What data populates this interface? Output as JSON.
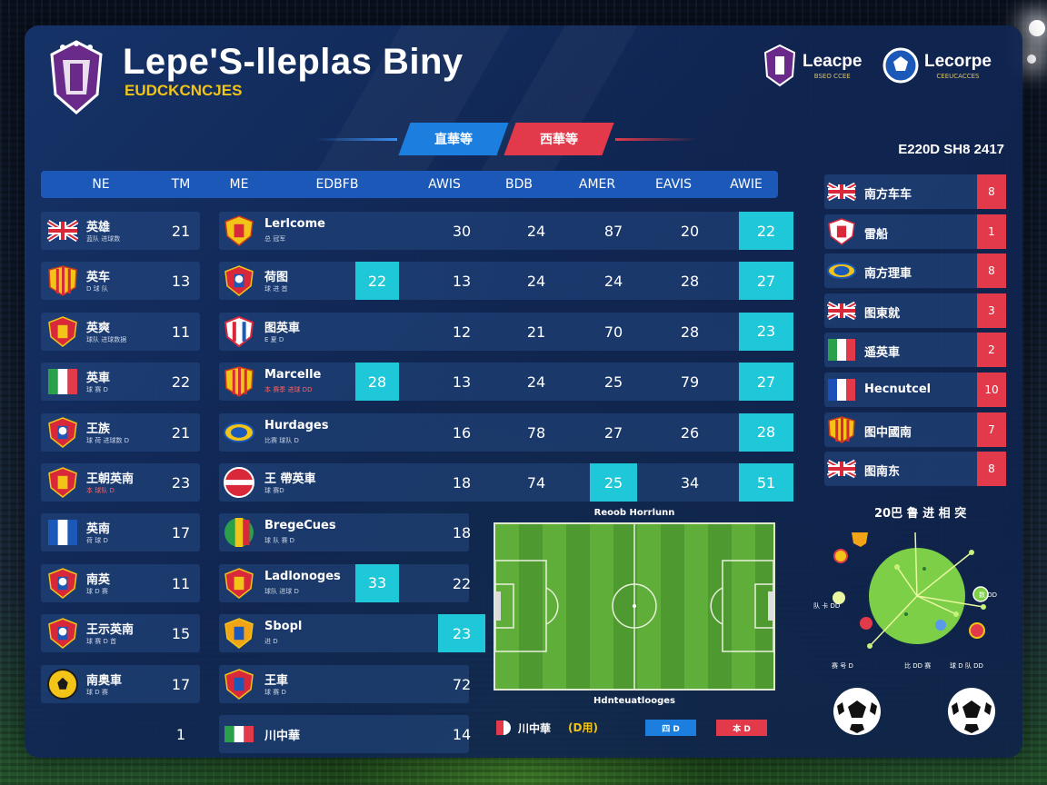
{
  "header": {
    "title": "Lepe'S-lleplas Biny",
    "subtitle": "EUDCKCNCJES",
    "brands": [
      {
        "name": "Leacpe",
        "sub": "BSEO CCEE"
      },
      {
        "name": "Lecorpe",
        "sub": "CEEUCACCES"
      }
    ],
    "season": "E220D SH8 2417"
  },
  "tabs": [
    {
      "label": "直華等",
      "color": "#1c7fe0"
    },
    {
      "label": "西華等",
      "color": "#e23a4a"
    }
  ],
  "table": {
    "headers": [
      "NE",
      "TM",
      "ME",
      "EDBFB",
      "AWIS",
      "BDB",
      "AMER",
      "EAVIS",
      "AWIE"
    ],
    "rows": [
      {
        "flag": "uk-flag-icon",
        "name": "英雄",
        "sub": "蓝队 进球数",
        "sub_red": false,
        "rank": "21",
        "club_crest": "yellow-red-crest-icon",
        "club": "Lerlcome",
        "club_sub": "总 冠军",
        "club_sub_red": false,
        "mid": "",
        "c1": "30",
        "c2": "24",
        "c3": "87",
        "c4": "20",
        "c5": "22"
      },
      {
        "flag": "yellow-red-stripes-flag-icon",
        "name": "英车",
        "sub": "D 球 队",
        "sub_red": false,
        "rank": "13",
        "club_crest": "blue-red-crest-icon",
        "club": "荷图",
        "club_sub": "球 进 首",
        "club_sub_red": false,
        "mid": "22",
        "c1": "13",
        "c2": "24",
        "c3": "24",
        "c4": "28",
        "c5": "27"
      },
      {
        "flag": "red-yellow-crest-icon",
        "name": "英爽",
        "sub": "球队 进球数据",
        "sub_red": false,
        "rank": "11",
        "club_crest": "red-white-crest-icon",
        "club": "图英車",
        "club_sub": "E 夏 D",
        "club_sub_red": false,
        "mid": "",
        "c1": "12",
        "c2": "21",
        "c3": "70",
        "c4": "28",
        "c5": "23"
      },
      {
        "flag": "italy-flag-icon",
        "name": "英車",
        "sub": "球 赛 D",
        "sub_red": false,
        "rank": "22",
        "club_crest": "orange-stripes-crest-icon",
        "club": "Marcelle",
        "club_sub": "本 赛季 进球 DD",
        "club_sub_red": true,
        "mid": "28",
        "c1": "13",
        "c2": "24",
        "c3": "25",
        "c4": "79",
        "c5": "27"
      },
      {
        "flag": "blue-red-crest-icon",
        "name": "王族",
        "sub": "球 荷 进球数 D",
        "sub_red": false,
        "rank": "21",
        "club_crest": "yellow-blue-crest-icon",
        "club": "Hurdages",
        "club_sub": "比赛 球队 D",
        "club_sub_red": false,
        "mid": "",
        "c1": "16",
        "c2": "78",
        "c3": "27",
        "c4": "26",
        "c5": "28"
      },
      {
        "flag": "red-yellow-crest-icon",
        "name": "王朝英南",
        "sub": "本 球队 D",
        "sub_red": true,
        "rank": "23",
        "club_crest": "red-white-stripes-crest-icon",
        "club": "王 帶英車",
        "club_sub": "球 赛D",
        "club_sub_red": false,
        "mid": "",
        "c1": "18",
        "c2": "74",
        "c3": "25",
        "c4": "34",
        "c5": "51"
      },
      {
        "flag": "blue-white-flag-icon",
        "name": "英南",
        "sub": "荷 球 D",
        "sub_red": false,
        "rank": "17",
        "club_crest": "green-yellow-red-crest-icon",
        "club": "BregeCues",
        "club_sub": "球 队 赛 D",
        "club_sub_red": false,
        "mid": "",
        "c1": "18",
        "c2": "",
        "c3": "",
        "c4": "",
        "c5": ""
      },
      {
        "flag": "blue-red-crest-icon",
        "name": "南英",
        "sub": "球 D 赛",
        "sub_red": false,
        "rank": "11",
        "club_crest": "red-yellow-crest-icon",
        "club": "Ladlonoges",
        "club_sub": "球队 进球 D",
        "club_sub_red": false,
        "mid": "33",
        "c1": "22",
        "c2": "",
        "c3": "",
        "c4": "",
        "c5": ""
      },
      {
        "flag": "blue-red-crest-icon",
        "name": "王示英南",
        "sub": "球 赛 D 首",
        "sub_red": false,
        "rank": "15",
        "club_crest": "blue-orange-crest-icon",
        "club": "Sbopl",
        "club_sub": "进 D",
        "club_sub_red": false,
        "mid": "",
        "c1": "23",
        "c2": "",
        "c3": "",
        "c4": "",
        "c5": ""
      },
      {
        "flag": "yellow-black-crest-icon",
        "name": "南奥車",
        "sub": "球 D 赛",
        "sub_red": false,
        "rank": "17",
        "club_crest": "red-blue-crest-icon",
        "club": "王車",
        "club_sub": "球 赛 D",
        "club_sub_red": false,
        "mid": "",
        "c1": "72",
        "c2": "",
        "c3": "",
        "c4": "",
        "c5": ""
      },
      {
        "flag": "",
        "name": "",
        "sub": "",
        "sub_red": false,
        "rank": "1",
        "club_crest": "italy-flag-icon",
        "club": "川中華",
        "club_sub": "",
        "club_sub_red": false,
        "mid": "",
        "c1": "14",
        "c2": "",
        "c3": "",
        "c4": "",
        "c5": ""
      }
    ]
  },
  "side_list": [
    {
      "flag": "uk-flag-icon",
      "name": "南方车车",
      "badge": "8"
    },
    {
      "flag": "red-crest-icon",
      "name": "雷船",
      "badge": "1"
    },
    {
      "flag": "yellow-blue-crest-icon",
      "name": "南方理車",
      "badge": "8"
    },
    {
      "flag": "uk-round-flag-icon",
      "name": "图東就",
      "badge": "3"
    },
    {
      "flag": "italy-flag-icon",
      "name": "遥英車",
      "badge": "2"
    },
    {
      "flag": "france-flag-icon",
      "name": "Hecnutcel",
      "badge": "10"
    },
    {
      "flag": "yellow-red-stripes-flag-icon",
      "name": "图中國南",
      "badge": "7"
    },
    {
      "flag": "uk-flag-icon",
      "name": "图南东",
      "badge": "8"
    }
  ],
  "pitch": {
    "top_label": "Reoob Horrlunn",
    "bottom_label": "Hdnteuatlooges"
  },
  "radar": {
    "title": "20巴 鲁 进 相 突",
    "labels": {
      "left": "队 卡 DD",
      "right": "数 DD",
      "bottom_left": "赛 号 D",
      "bottom_mid": "比 DD 赛",
      "bottom_right": "球 D 队 DD"
    }
  },
  "footer_legend": {
    "a": "川中華",
    "b": "(D用)",
    "box_blue": "四 D",
    "box_red": "本 D"
  },
  "colors": {
    "accent_blue": "#1c58b8",
    "highlight": "#1ec8d8",
    "red": "#e23a4a",
    "yellow": "#f2c417"
  }
}
